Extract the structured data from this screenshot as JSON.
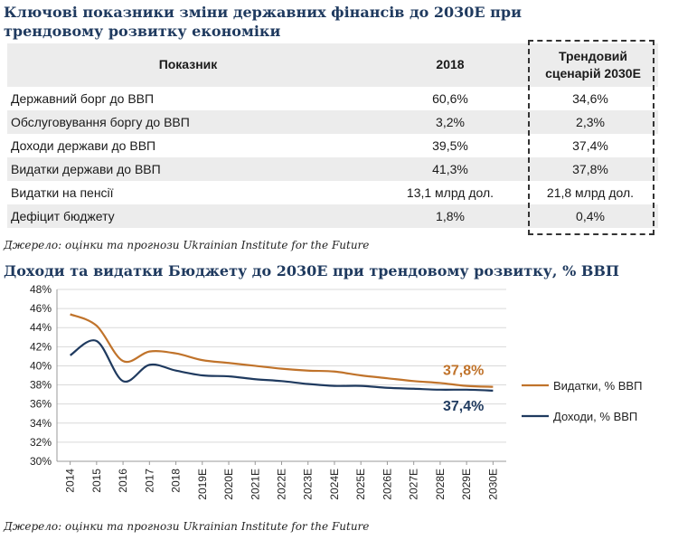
{
  "table_title": "Ключові показники зміни державних фінансів до 2030Е при трендовому розвитку економіки",
  "table": {
    "headers": [
      "Показник",
      "2018",
      "Трендовий сценарій 2030Е"
    ],
    "rows": [
      [
        "Державний борг до ВВП",
        "60,6%",
        "34,6%"
      ],
      [
        "Обслуговування боргу до ВВП",
        "3,2%",
        "2,3%"
      ],
      [
        "Доходи держави до ВВП",
        "39,5%",
        "37,4%"
      ],
      [
        "Видатки держави до ВВП",
        "41,3%",
        "37,8%"
      ],
      [
        "Видатки на пенсії",
        "13,1 млрд дол.",
        "21,8 млрд дол."
      ],
      [
        "Дефіцит бюджету",
        "1,8%",
        "0,4%"
      ]
    ]
  },
  "table_source": "Джерело: оцінки та прогнози Ukrainian Institute for the Future",
  "chart_title": "Доходи та видатки Бюджету до 2030Е при трендовому розвитку, % ВВП",
  "chart_source": "Джерело: оцінки та прогнози Ukrainian Institute for the Future",
  "colors": {
    "title": "#1f3a5f",
    "expenses": "#c0732b",
    "revenues": "#1f3a5f",
    "grid": "#d9d9d9"
  },
  "chart_data": {
    "type": "line",
    "x": [
      "2014",
      "2015",
      "2016",
      "2017",
      "2018",
      "2019E",
      "2020E",
      "2021E",
      "2022E",
      "2023E",
      "2024E",
      "2025E",
      "2026E",
      "2027E",
      "2028E",
      "2029E",
      "2030E"
    ],
    "series": [
      {
        "name": "Видатки, % ВВП",
        "values": [
          45.4,
          44.2,
          40.5,
          41.5,
          41.3,
          40.6,
          40.3,
          40.0,
          39.7,
          39.5,
          39.4,
          39.0,
          38.7,
          38.4,
          38.2,
          37.9,
          37.8
        ],
        "end_label": "37,8%"
      },
      {
        "name": "Доходи, % ВВП",
        "values": [
          41.1,
          42.6,
          38.4,
          40.1,
          39.5,
          39.0,
          38.9,
          38.6,
          38.4,
          38.1,
          37.9,
          37.9,
          37.7,
          37.6,
          37.5,
          37.5,
          37.4
        ],
        "end_label": "37,4%"
      }
    ],
    "yticks": [
      "30%",
      "32%",
      "34%",
      "36%",
      "38%",
      "40%",
      "42%",
      "44%",
      "46%",
      "48%"
    ],
    "ylim": [
      30,
      48
    ],
    "grid": true,
    "legend": "right"
  }
}
